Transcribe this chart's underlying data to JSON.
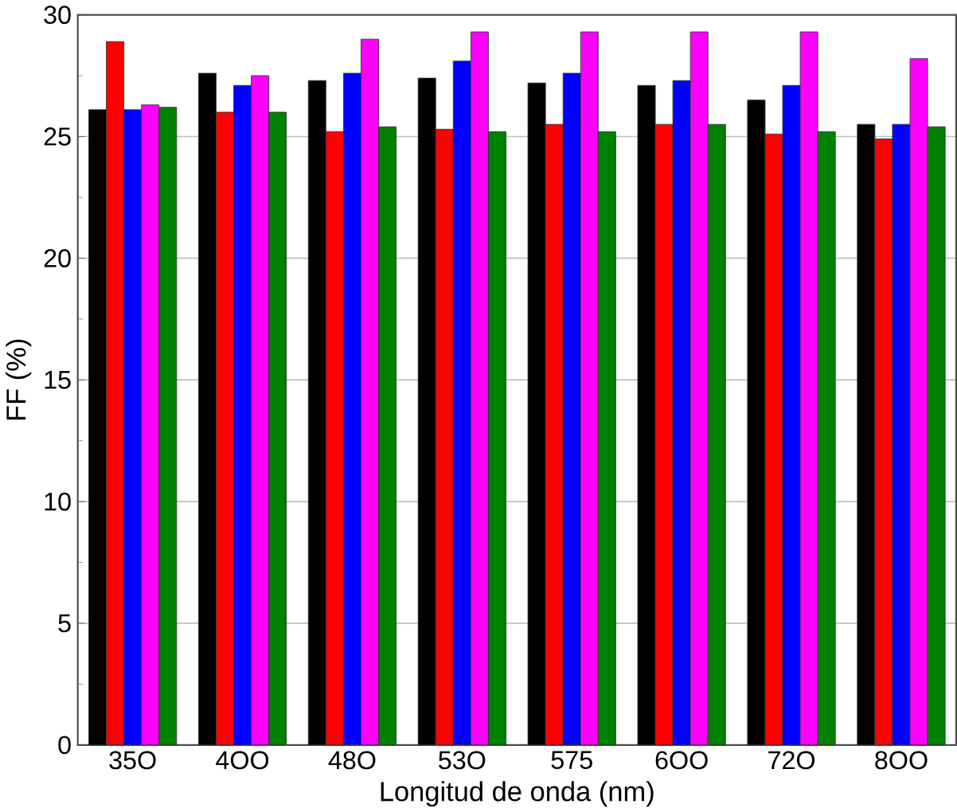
{
  "chart_data": {
    "type": "bar",
    "xlabel": "Longitud de onda (nm)",
    "ylabel": "FF (%)",
    "categories": [
      "35O",
      "4OO",
      "48O",
      "53O",
      "575",
      "6OO",
      "72O",
      "8OO"
    ],
    "series": [
      {
        "color": "#000000",
        "values": [
          26.1,
          27.6,
          27.3,
          27.4,
          27.2,
          27.1,
          26.5,
          25.5
        ]
      },
      {
        "color": "#ff0000",
        "values": [
          28.9,
          26.0,
          25.2,
          25.3,
          25.5,
          25.5,
          25.1,
          24.9
        ]
      },
      {
        "color": "#0000ff",
        "values": [
          26.1,
          27.1,
          27.6,
          28.1,
          27.6,
          27.3,
          27.1,
          25.5
        ]
      },
      {
        "color": "#ff00ff",
        "values": [
          26.3,
          27.5,
          29.0,
          29.3,
          29.3,
          29.3,
          29.3,
          28.2
        ]
      },
      {
        "color": "#008000",
        "values": [
          26.2,
          26.0,
          25.4,
          25.2,
          25.2,
          25.5,
          25.2,
          25.4
        ]
      }
    ],
    "ylim": [
      0,
      30
    ],
    "yticks": [
      0,
      5,
      10,
      15,
      20,
      25,
      30
    ],
    "grid": "y"
  }
}
